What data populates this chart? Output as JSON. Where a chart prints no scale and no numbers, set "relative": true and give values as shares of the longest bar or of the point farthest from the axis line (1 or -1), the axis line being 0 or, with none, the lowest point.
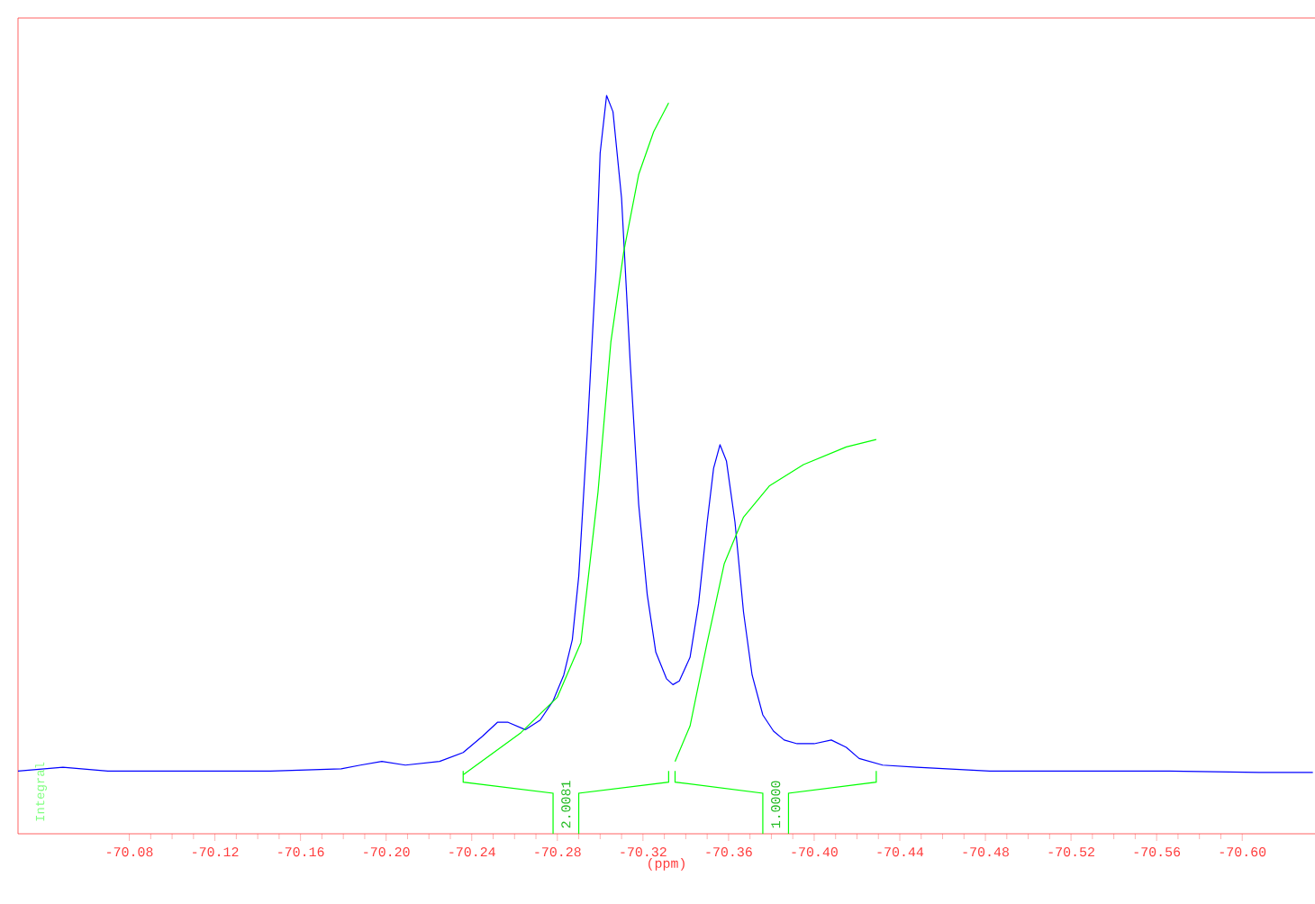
{
  "chart_data": {
    "type": "line",
    "relative": true,
    "xlabel": "(ppm)",
    "ylabel": "Integral",
    "xlim": [
      -70.028,
      -70.634
    ],
    "xticks": [
      -70.08,
      -70.12,
      -70.16,
      {
        "value": -70.2,
        "label": "-70.20"
      },
      -70.24,
      -70.28,
      -70.32,
      -70.36,
      {
        "value": -70.4,
        "label": "-70.40"
      },
      -70.44,
      -70.48,
      -70.52,
      -70.56,
      {
        "value": -70.6,
        "label": "-70.60"
      }
    ],
    "series": [
      {
        "color": "#0000ff",
        "x": [
          -70.028,
          -70.049,
          -70.07,
          -70.104,
          -70.146,
          -70.179,
          -70.188,
          -70.198,
          -70.209,
          -70.225,
          -70.236,
          -70.245,
          -70.252,
          -70.257,
          -70.265,
          -70.272,
          -70.278,
          -70.283,
          -70.287,
          -70.29,
          -70.294,
          -70.298,
          -70.3,
          -70.303,
          -70.306,
          -70.31,
          -70.314,
          -70.318,
          -70.322,
          -70.326,
          -70.331,
          -70.334,
          -70.337,
          -70.342,
          -70.346,
          -70.35,
          -70.353,
          -70.356,
          -70.359,
          -70.363,
          -70.367,
          -70.371,
          -70.376,
          -70.381,
          -70.386,
          -70.392,
          -70.4,
          -70.408,
          -70.415,
          -70.421,
          -70.432,
          -70.448,
          -70.482,
          -70.524,
          -70.566,
          -70.608,
          -70.633
        ],
        "values": [
          0.085,
          0.09,
          0.085,
          0.085,
          0.085,
          0.088,
          0.093,
          0.098,
          0.093,
          0.098,
          0.11,
          0.132,
          0.151,
          0.151,
          0.141,
          0.154,
          0.18,
          0.215,
          0.263,
          0.349,
          0.544,
          0.763,
          0.922,
          1,
          0.978,
          0.861,
          0.641,
          0.446,
          0.324,
          0.246,
          0.21,
          0.202,
          0.207,
          0.239,
          0.312,
          0.422,
          0.495,
          0.527,
          0.505,
          0.422,
          0.3,
          0.215,
          0.161,
          0.139,
          0.127,
          0.122,
          0.122,
          0.127,
          0.117,
          0.102,
          0.093,
          0.09,
          0.085,
          0.085,
          0.085,
          0.083,
          0.083
        ]
      },
      {
        "color": "#00ff00",
        "x": [
          -70.236,
          -70.263,
          -70.28,
          -70.291,
          -70.299,
          -70.305,
          -70.311,
          -70.318,
          -70.325,
          -70.332
        ],
        "values": [
          0.08,
          0.137,
          0.185,
          0.259,
          0.463,
          0.666,
          0.788,
          0.893,
          0.951,
          0.99
        ]
      },
      {
        "color": "#00ff00",
        "x": [
          -70.335,
          -70.342,
          -70.35,
          -70.358,
          -70.367,
          -70.379,
          -70.395,
          -70.415,
          -70.429
        ],
        "values": [
          0.098,
          0.146,
          0.259,
          0.366,
          0.429,
          0.471,
          0.5,
          0.524,
          0.534
        ]
      }
    ],
    "annotations": [
      "2.0081",
      "1.0000"
    ]
  }
}
